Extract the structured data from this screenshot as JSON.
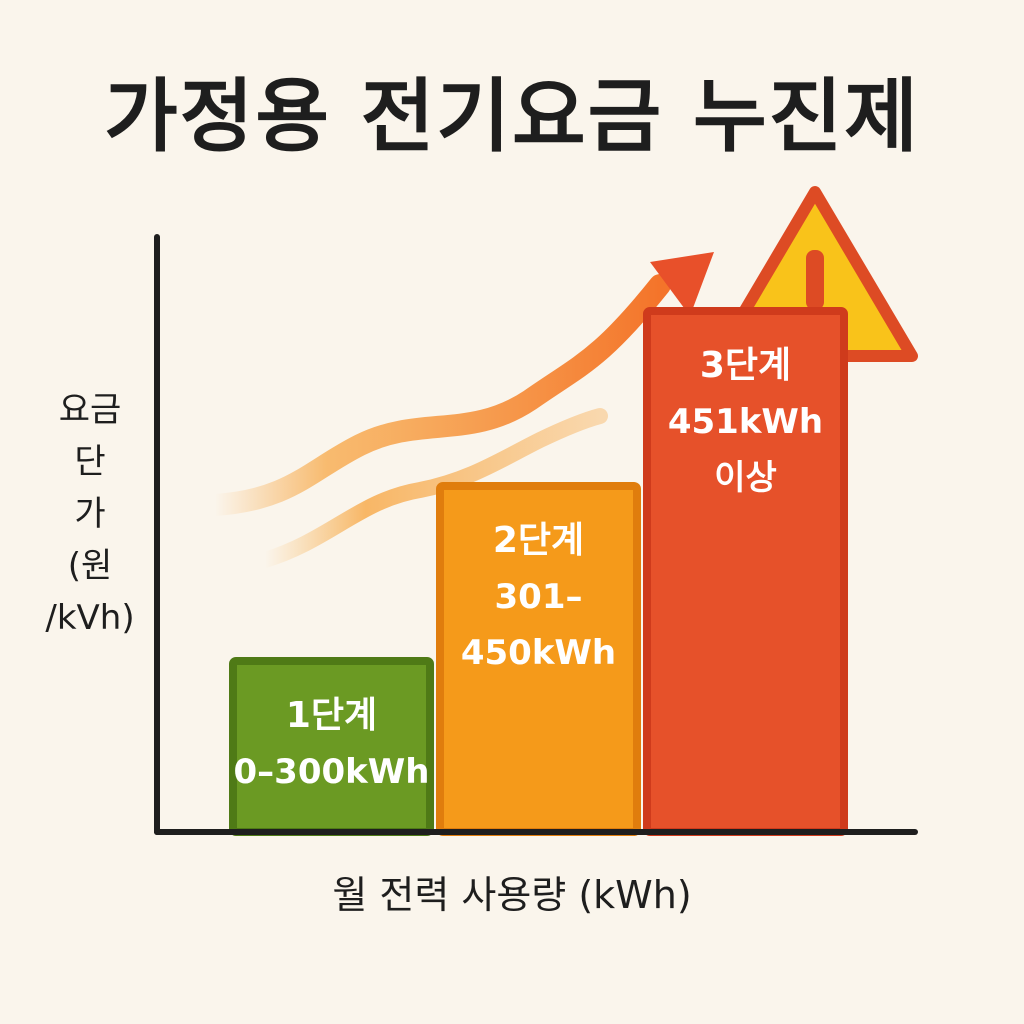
{
  "title": "가정용 전기요금 누진제",
  "chart_data": {
    "type": "bar",
    "categories": [
      "1단계",
      "2단계",
      "3단계"
    ],
    "tier_ranges": [
      "0–300kWh",
      "301–450kWh",
      "451kWh 이상"
    ],
    "range_lines": [
      [
        "0–300kWh"
      ],
      [
        "301–",
        "450kWh"
      ],
      [
        "451kWh",
        "이상"
      ]
    ],
    "values": [
      1,
      2,
      3
    ],
    "ylim": [
      0,
      3.4
    ],
    "ylabel_lines": [
      "요금",
      "단",
      "가",
      "(원",
      "/kVh)"
    ],
    "xlabel": "월 전력 사용량 (kWh)",
    "colors": [
      "#6b9a23",
      "#f59a1a",
      "#e6512a"
    ],
    "border_colors": [
      "#4f7a16",
      "#e07d0d",
      "#cf3b1c"
    ],
    "axis_color": "#1e1e1e",
    "warning_icon": "warning-triangle-icon",
    "trend_arrow": "rising-arrow"
  }
}
